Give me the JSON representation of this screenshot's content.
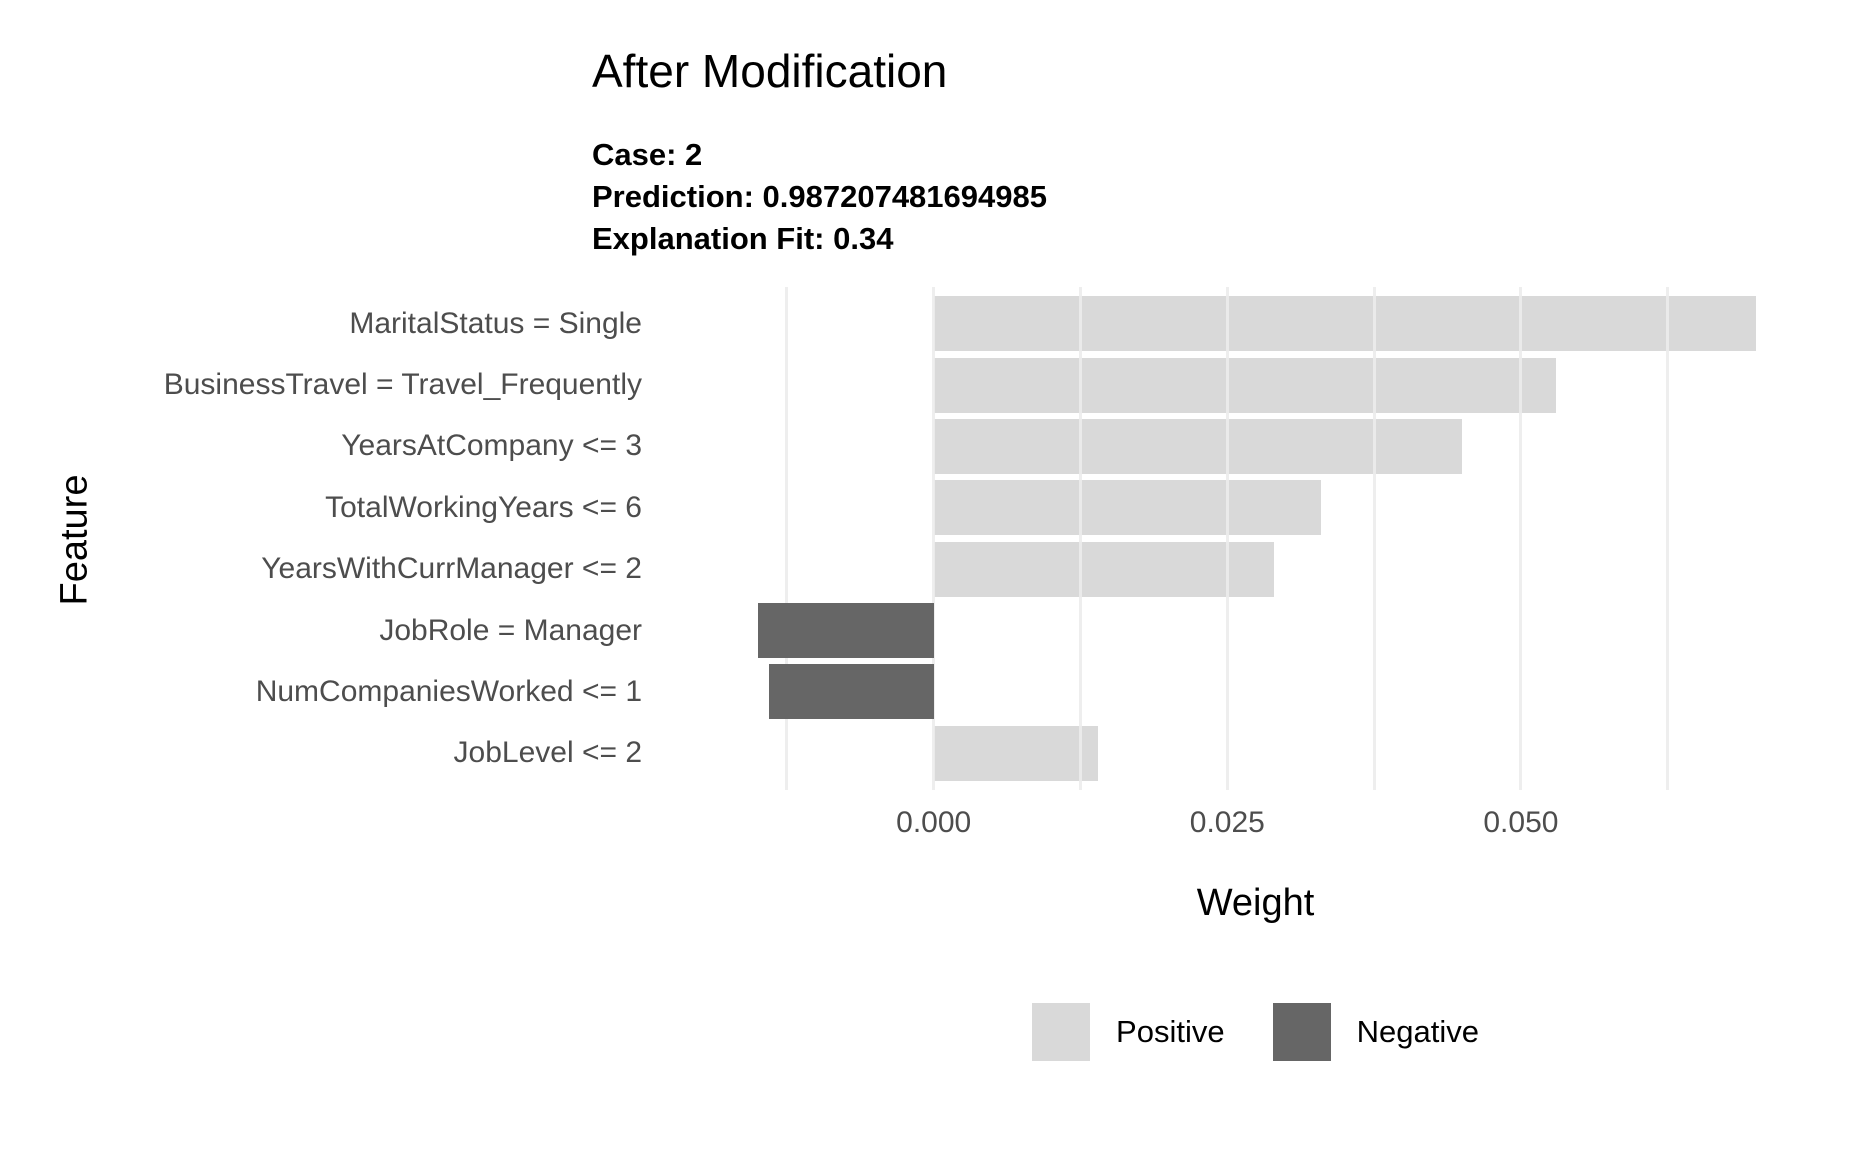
{
  "chart_data": {
    "type": "bar",
    "orientation": "horizontal",
    "title": "After Modification",
    "subtitle_lines": [
      "Case: 2",
      "Prediction: 0.987207481694985",
      "Explanation Fit: 0.34"
    ],
    "categories": [
      "MaritalStatus = Single",
      "BusinessTravel = Travel_Frequently",
      "YearsAtCompany <= 3",
      "TotalWorkingYears <= 6",
      "YearsWithCurrManager <= 2",
      "JobRole = Manager",
      "NumCompaniesWorked <= 1",
      "JobLevel <= 2"
    ],
    "values": [
      0.07,
      0.053,
      0.045,
      0.033,
      0.029,
      -0.015,
      -0.014,
      0.014
    ],
    "xlabel": "Weight",
    "ylabel": "Feature",
    "xlim": [
      -0.0199,
      0.0747
    ],
    "x_major_ticks": [
      0,
      0.025,
      0.05
    ],
    "x_tick_labels": [
      "0.000",
      "0.025",
      "0.050"
    ],
    "x_minor_ticks": [
      -0.0125,
      0.0125,
      0.0375,
      0.0625
    ],
    "grid": "vertical-only",
    "bar_width_fraction": 0.9,
    "legend": {
      "position": "bottom",
      "entries": [
        {
          "label": "Positive",
          "color": "#d9d9d9"
        },
        {
          "label": "Negative",
          "color": "#666666"
        }
      ]
    },
    "colors": {
      "positive": "#d9d9d9",
      "negative": "#666666",
      "grid": "#ebebeb",
      "axis_text": "#4d4d4d",
      "title_text": "#000000"
    }
  }
}
